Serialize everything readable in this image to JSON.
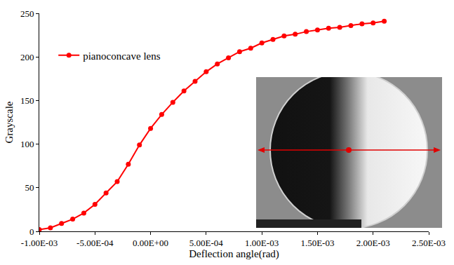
{
  "chart_data": {
    "type": "line",
    "xlabel": "Deflection angle(rad)",
    "ylabel": "Grayscale",
    "x": [
      -0.001,
      -0.0009,
      -0.0008,
      -0.0007,
      -0.0006,
      -0.0005,
      -0.0004,
      -0.0003,
      -0.0002,
      -0.0001,
      0,
      0.0001,
      0.0002,
      0.0003,
      0.0004,
      0.0005,
      0.0006,
      0.0007,
      0.0008,
      0.0009,
      0.001,
      0.0011,
      0.0012,
      0.0013,
      0.0014,
      0.0015,
      0.0016,
      0.0017,
      0.0018,
      0.0019,
      0.002,
      0.0021
    ],
    "series": [
      {
        "name": "pianoconcave lens",
        "color": "#ff0000",
        "marker": "circle",
        "line_style": "solid",
        "values": [
          2,
          4,
          9,
          14,
          21,
          31,
          44,
          57,
          77,
          99,
          118,
          134,
          148,
          161,
          172,
          183,
          192,
          199,
          206,
          210,
          216,
          220,
          224,
          226,
          229,
          231,
          233,
          234,
          236,
          238,
          239,
          241
        ]
      }
    ],
    "xlim": [
      -0.001,
      0.0025
    ],
    "xticks": [
      {
        "value": -0.001,
        "label": "-1.00E-03"
      },
      {
        "value": -0.0005,
        "label": "-5.00E-04"
      },
      {
        "value": 0,
        "label": "0.00E+00"
      },
      {
        "value": 0.0005,
        "label": "5.00E-04"
      },
      {
        "value": 0.001,
        "label": "1.00E-03"
      },
      {
        "value": 0.0015,
        "label": "1.50E-03"
      },
      {
        "value": 0.002,
        "label": "2.00E-03"
      },
      {
        "value": 0.0025,
        "label": "2.50E-03"
      }
    ],
    "ylim": [
      0,
      250
    ],
    "yticks": [
      0,
      50,
      100,
      150,
      200,
      250
    ],
    "grid": false,
    "legend": "upper left"
  }
}
